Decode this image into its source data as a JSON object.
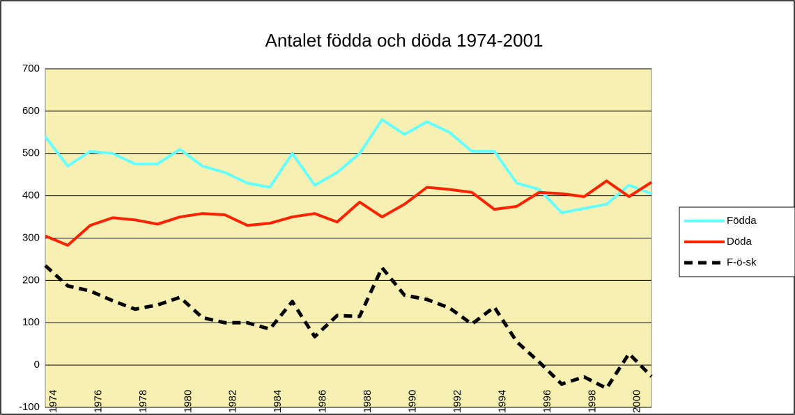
{
  "chart_data": {
    "type": "line",
    "title": "Antalet födda och döda 1974-2001",
    "categories": [
      "1974",
      null,
      "1976",
      null,
      "1978",
      null,
      "1980",
      null,
      "1982",
      null,
      "1984",
      null,
      "1986",
      null,
      "1988",
      null,
      "1990",
      null,
      "1992",
      null,
      "1994",
      null,
      "1996",
      null,
      "1998",
      null,
      "2000",
      null
    ],
    "series": [
      {
        "name": "Födda",
        "color": "#66ffff",
        "dashed": false,
        "values": [
          540,
          470,
          505,
          500,
          475,
          475,
          510,
          470,
          455,
          430,
          420,
          500,
          425,
          455,
          500,
          580,
          545,
          575,
          550,
          505,
          505,
          430,
          415,
          360,
          370,
          380,
          425,
          405
        ]
      },
      {
        "name": "Döda",
        "color": "#ff2200",
        "dashed": false,
        "values": [
          305,
          283,
          330,
          348,
          343,
          333,
          350,
          358,
          355,
          330,
          335,
          350,
          358,
          338,
          385,
          350,
          380,
          420,
          415,
          408,
          368,
          375,
          408,
          405,
          398,
          435,
          398,
          432
        ]
      },
      {
        "name": "F-ö-sk",
        "color": "#000000",
        "dashed": true,
        "values": [
          235,
          187,
          175,
          152,
          132,
          142,
          160,
          112,
          100,
          100,
          85,
          150,
          67,
          117,
          115,
          230,
          165,
          155,
          135,
          97,
          137,
          55,
          7,
          -45,
          -28,
          -55,
          27,
          -27
        ]
      }
    ],
    "ylim": [
      -100,
      700
    ],
    "yticks": [
      -100,
      0,
      100,
      200,
      300,
      400,
      500,
      600,
      700
    ],
    "grid": true,
    "legend": "right"
  }
}
